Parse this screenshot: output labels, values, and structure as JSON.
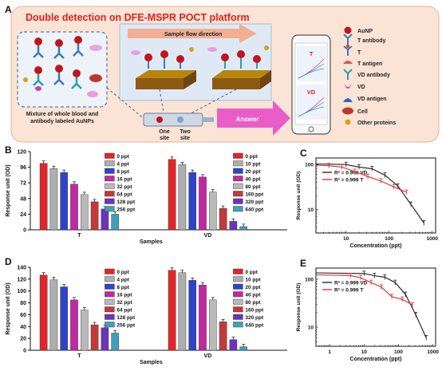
{
  "panelA": {
    "letter": "A",
    "title": "Double detection on DFE-MSPR POCT platform",
    "flow_label": "Sample flow direction",
    "blood_caption_1": "Mixture of whole blood and",
    "blood_caption_2": "antibody labeled AuNPs",
    "site_one_1": "One",
    "site_one_2": "site",
    "site_two_1": "Two",
    "site_two_2": "site",
    "answer": "Answer",
    "phone_t": "T",
    "phone_vd": "VD",
    "legend": [
      {
        "icon": "aunp-icon",
        "label": "AuNP",
        "color": "#c0151b"
      },
      {
        "icon": "t-antibody-icon",
        "label": "T antibody",
        "color": "#3a7ab8"
      },
      {
        "icon": "t-icon",
        "label": "T",
        "color": "#e23a3a"
      },
      {
        "icon": "t-antigen-icon",
        "label": "T antigen",
        "color": "#e8504a"
      },
      {
        "icon": "vd-antibody-icon",
        "label": "VD antibody",
        "color": "#2d9dab"
      },
      {
        "icon": "vd-icon",
        "label": "VD",
        "color": "#c73bbd"
      },
      {
        "icon": "vd-antigen-icon",
        "label": "VD antigen",
        "color": "#2a68c5"
      },
      {
        "icon": "cell-icon",
        "label": "Cell",
        "color": "#b83a2f"
      },
      {
        "icon": "other-proteins-icon",
        "label": "Other proteins",
        "color": "#d2a419"
      }
    ]
  },
  "chart_data": [
    {
      "panel": "B",
      "type": "bar",
      "ylabel": "Response unit (OD)",
      "xlabel": "Samples",
      "ylim": [
        0,
        120
      ],
      "yticks": [
        "0",
        "24",
        "48",
        "72",
        "96",
        "120"
      ],
      "groups": [
        {
          "name": "T",
          "legend": [
            "0 ppt",
            "4 ppt",
            "8 ppt",
            "16 ppt",
            "32 ppt",
            "64 ppt",
            "128 ppt",
            "256 ppt"
          ],
          "values": [
            102,
            94,
            88,
            70,
            54,
            43,
            32,
            24
          ]
        },
        {
          "name": "VD",
          "legend": [
            "0 ppt",
            "10 ppt",
            "20 ppt",
            "40 ppt",
            "80 ppt",
            "160 ppt",
            "320 ppt",
            "640 ppt"
          ],
          "values": [
            108,
            100,
            88,
            81,
            58,
            33,
            13,
            5
          ]
        }
      ],
      "colors": [
        "#e0252b",
        "#aeaeae",
        "#2e44c8",
        "#c0299f",
        "#b9b9b9",
        "#c23a3a",
        "#6a35b8",
        "#3f9fbd"
      ]
    },
    {
      "panel": "C",
      "type": "line",
      "ylabel": "Response unit (OD)",
      "xlabel": "Concentration (ppt)",
      "xscale": "log",
      "yscale": "log",
      "xticks": [
        "10",
        "100",
        "1000"
      ],
      "yticks": [
        "10",
        "100"
      ],
      "series": [
        {
          "name": "R² = 0.998 VD",
          "color": "#1a1a1a",
          "x": [
            10,
            20,
            40,
            80,
            160,
            320,
            640
          ],
          "y": [
            100,
            88,
            81,
            58,
            33,
            13,
            5
          ]
        },
        {
          "name": "R² = 0.999 T",
          "color": "#e0252b",
          "x": [
            4,
            8,
            16,
            32,
            64,
            128,
            256
          ],
          "y": [
            94,
            88,
            70,
            54,
            43,
            32,
            24
          ]
        }
      ]
    },
    {
      "panel": "D",
      "type": "bar",
      "ylabel": "Response unit (OD)",
      "xlabel": "Samples",
      "ylim": [
        0,
        140
      ],
      "yticks": [
        "0",
        "20",
        "40",
        "60",
        "80",
        "100",
        "120",
        "140"
      ],
      "groups": [
        {
          "name": "T",
          "legend": [
            "0 ppt",
            "4 ppt",
            "8 ppt",
            "16 ppt",
            "32 ppt",
            "64 ppt",
            "128 ppt",
            "256 ppt"
          ],
          "values": [
            127,
            119,
            107,
            85,
            68,
            43,
            38,
            29
          ]
        },
        {
          "name": "VD",
          "legend": [
            "0 ppt",
            "10 ppt",
            "20 ppt",
            "40 ppt",
            "80 ppt",
            "160 ppt",
            "320 ppt",
            "640 ppt"
          ],
          "values": [
            135,
            131,
            118,
            110,
            85,
            48,
            18,
            6
          ]
        }
      ],
      "colors": [
        "#e0252b",
        "#aeaeae",
        "#2e44c8",
        "#c0299f",
        "#b9b9b9",
        "#c23a3a",
        "#6a35b8",
        "#3f9fbd"
      ]
    },
    {
      "panel": "E",
      "type": "line",
      "ylabel": "Response unit (OD)",
      "xlabel": "Concentration (ppt)",
      "xscale": "log",
      "yscale": "log",
      "xticks": [
        "1",
        "10",
        "100",
        "1000"
      ],
      "yticks": [
        "10",
        "100"
      ],
      "series": [
        {
          "name": "R² = 0.999 VD",
          "color": "#1a1a1a",
          "x": [
            10,
            20,
            40,
            80,
            160,
            320,
            640
          ],
          "y": [
            131,
            118,
            110,
            85,
            48,
            18,
            6
          ]
        },
        {
          "name": "R² = 0.999 T",
          "color": "#e0252b",
          "x": [
            4,
            8,
            16,
            32,
            64,
            128,
            256
          ],
          "y": [
            119,
            107,
            85,
            68,
            43,
            38,
            29
          ]
        }
      ]
    }
  ]
}
